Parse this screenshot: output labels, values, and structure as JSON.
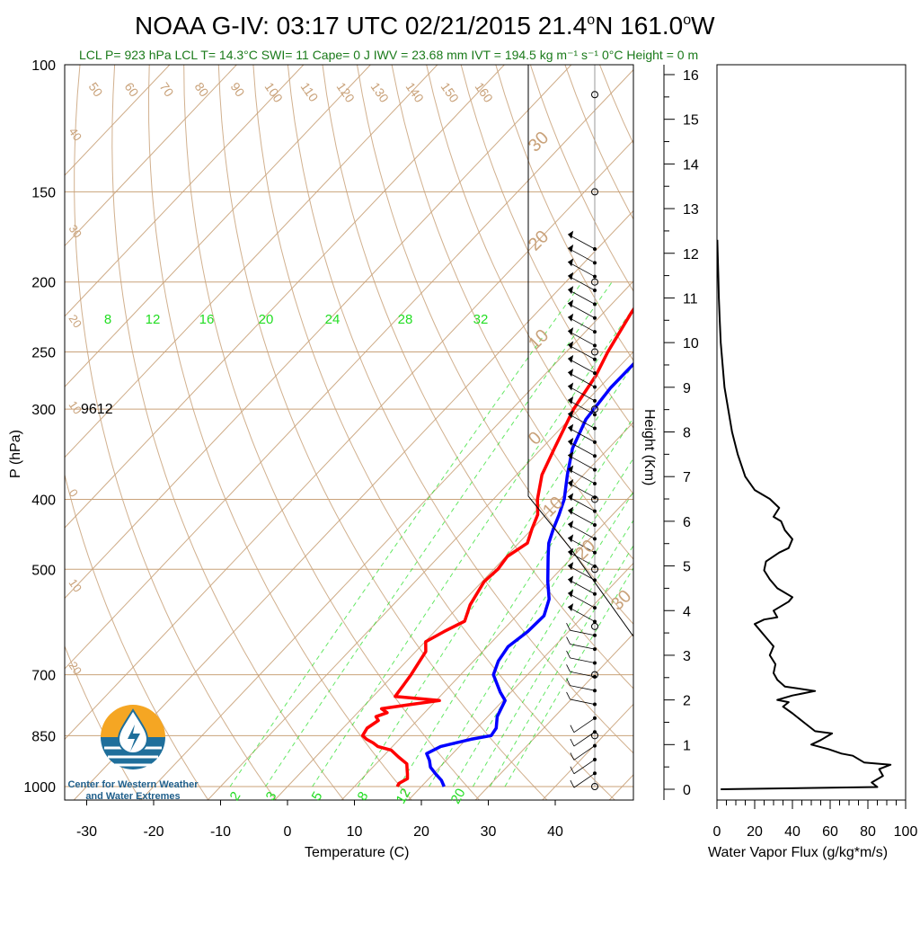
{
  "header": {
    "title_main": "NOAA G-IV: 03:17 UTC 02/21/2015  21.4",
    "title_lat_unit": "o",
    "title_mid": "N 161.0",
    "title_lon_unit": "o",
    "title_end": "W",
    "subtitle": "LCL P= 923 hPa  LCL T= 14.3°C  SWI= 11  Cape= 0 J  IWV = 23.68 mm  IVT = 194.5 kg m⁻¹ s⁻¹  0°C Height = 0 m"
  },
  "annotation": {
    "text": "9612"
  },
  "logo": {
    "line1": "Center for Western Weather",
    "line2": "and Water Extremes"
  },
  "colors": {
    "temperature": "#ff0000",
    "dewpoint": "#0000ff",
    "isotherm": "#c9a27a",
    "mixing_ratio": "#22dd22",
    "flux": "#000000"
  },
  "chart_data": [
    {
      "type": "line",
      "title": "",
      "xlabel": "Temperature (C)",
      "ylabel": "P (hPa)",
      "x_ticks": [
        "-30",
        "-20",
        "-10",
        "0",
        "10",
        "20",
        "30",
        "40"
      ],
      "y_ticks": [
        "100",
        "150",
        "200",
        "250",
        "300",
        "400",
        "500",
        "700",
        "850",
        "1000"
      ],
      "top_mixing_ratio_labels": [
        "8",
        "12",
        "16",
        "20",
        "24",
        "28",
        "32"
      ],
      "bottom_mixing_ratio_labels": [
        "2",
        "3",
        "5",
        "8",
        "12",
        "20"
      ],
      "isotherm_labels_top": [
        "50",
        "60",
        "70",
        "80",
        "90",
        "100",
        "110",
        "120",
        "130",
        "140",
        "150",
        "160"
      ],
      "isotherm_labels_left": [
        "40",
        "30",
        "20",
        "10",
        "0",
        "10",
        "20"
      ],
      "isotherm_labels_right": [
        "30",
        "20",
        "10",
        "0",
        "10",
        "20",
        "30"
      ],
      "series": [
        {
          "name": "",
          "points_p_t": [
            [
              1000,
              16.4
            ],
            [
              990,
              16.2
            ],
            [
              975,
              16.8
            ],
            [
              960,
              16.1
            ],
            [
              950,
              15.6
            ],
            [
              930,
              14.6
            ],
            [
              910,
              12.4
            ],
            [
              890,
              10.3
            ],
            [
              880,
              7.8
            ],
            [
              870,
              6.6
            ],
            [
              860,
              5.1
            ],
            [
              850,
              4.0
            ],
            [
              840,
              3.8
            ],
            [
              830,
              3.6
            ],
            [
              810,
              4.2
            ],
            [
              800,
              3.3
            ],
            [
              790,
              4.4
            ],
            [
              780,
              3.0
            ],
            [
              770,
              6.6
            ],
            [
              760,
              10.5
            ],
            [
              750,
              3.3
            ],
            [
              720,
              2.9
            ],
            [
              700,
              2.6
            ],
            [
              650,
              1.5
            ],
            [
              630,
              0.1
            ],
            [
              610,
              1.4
            ],
            [
              590,
              3.0
            ],
            [
              560,
              1.5
            ],
            [
              520,
              0.3
            ],
            [
              500,
              0.6
            ],
            [
              480,
              0.2
            ],
            [
              460,
              1.3
            ],
            [
              440,
              0.0
            ],
            [
              420,
              -1.2
            ],
            [
              400,
              -3.4
            ],
            [
              370,
              -6.2
            ],
            [
              340,
              -8.1
            ],
            [
              300,
              -10.8
            ],
            [
              270,
              -12.2
            ],
            [
              250,
              -13.8
            ],
            [
              220,
              -15.9
            ],
            [
              200,
              -17.0
            ],
            [
              185,
              -18.3
            ]
          ]
        },
        {
          "name": "",
          "points_p_t": [
            [
              1000,
              23.4
            ],
            [
              980,
              22.1
            ],
            [
              960,
              20.3
            ],
            [
              940,
              18.6
            ],
            [
              920,
              17.5
            ],
            [
              900,
              16.1
            ],
            [
              880,
              17.2
            ],
            [
              860,
              20.7
            ],
            [
              850,
              23.2
            ],
            [
              830,
              22.9
            ],
            [
              800,
              21.4
            ],
            [
              760,
              20.3
            ],
            [
              740,
              18.4
            ],
            [
              700,
              14.9
            ],
            [
              670,
              13.7
            ],
            [
              640,
              13.1
            ],
            [
              610,
              13.9
            ],
            [
              580,
              14.1
            ],
            [
              550,
              12.5
            ],
            [
              520,
              9.8
            ],
            [
              480,
              6.3
            ],
            [
              460,
              4.5
            ],
            [
              440,
              3.2
            ],
            [
              420,
              2.0
            ],
            [
              400,
              0.6
            ],
            [
              370,
              -2.4
            ],
            [
              340,
              -5.4
            ],
            [
              310,
              -7.5
            ],
            [
              280,
              -8.3
            ],
            [
              250,
              -8.2
            ],
            [
              230,
              -8.9
            ],
            [
              210,
              -10.1
            ],
            [
              195,
              -11.0
            ],
            [
              185,
              -12.1
            ]
          ]
        }
      ]
    },
    {
      "type": "line",
      "title": "",
      "xlabel": "Water Vapor Flux (g/kg*m/s)",
      "ylabel": "Height (Km)",
      "xlim": [
        0,
        100
      ],
      "ylim": [
        0,
        16
      ],
      "x_ticks": [
        "0",
        "20",
        "40",
        "60",
        "80",
        "100"
      ],
      "y_ticks": [
        "0",
        "1",
        "2",
        "3",
        "4",
        "5",
        "6",
        "7",
        "8",
        "9",
        "10",
        "11",
        "12",
        "13",
        "14",
        "15",
        "16"
      ],
      "series": [
        {
          "name": "",
          "points_x_h": [
            [
              2,
              0.0
            ],
            [
              85,
              0.05
            ],
            [
              82,
              0.15
            ],
            [
              88,
              0.3
            ],
            [
              86,
              0.45
            ],
            [
              92,
              0.55
            ],
            [
              78,
              0.6
            ],
            [
              72,
              0.75
            ],
            [
              66,
              0.8
            ],
            [
              59,
              0.9
            ],
            [
              50,
              1.0
            ],
            [
              55,
              1.1
            ],
            [
              61,
              1.25
            ],
            [
              52,
              1.3
            ],
            [
              46,
              1.5
            ],
            [
              40,
              1.7
            ],
            [
              35,
              1.85
            ],
            [
              38,
              1.95
            ],
            [
              32,
              2.0
            ],
            [
              40,
              2.1
            ],
            [
              52,
              2.2
            ],
            [
              36,
              2.3
            ],
            [
              32,
              2.45
            ],
            [
              30,
              2.6
            ],
            [
              31,
              2.8
            ],
            [
              28,
              3.0
            ],
            [
              30,
              3.2
            ],
            [
              26,
              3.4
            ],
            [
              20,
              3.7
            ],
            [
              25,
              3.8
            ],
            [
              32,
              3.85
            ],
            [
              30,
              4.0
            ],
            [
              38,
              4.2
            ],
            [
              40,
              4.3
            ],
            [
              32,
              4.5
            ],
            [
              28,
              4.7
            ],
            [
              25,
              4.9
            ],
            [
              26,
              5.1
            ],
            [
              33,
              5.3
            ],
            [
              38,
              5.4
            ],
            [
              40,
              5.6
            ],
            [
              36,
              5.8
            ],
            [
              34,
              6.0
            ],
            [
              30,
              6.1
            ],
            [
              33,
              6.3
            ],
            [
              28,
              6.5
            ],
            [
              20,
              6.7
            ],
            [
              15,
              7.0
            ],
            [
              11,
              7.5
            ],
            [
              8,
              8.0
            ],
            [
              6,
              8.5
            ],
            [
              4,
              9.0
            ],
            [
              3,
              9.5
            ],
            [
              2,
              10.0
            ],
            [
              1.5,
              10.5
            ],
            [
              1,
              11.0
            ],
            [
              0.7,
              11.5
            ],
            [
              0.4,
              12.0
            ],
            [
              0.2,
              12.3
            ]
          ]
        }
      ]
    }
  ],
  "wind_column": {
    "dots_hpa": [
      110,
      150,
      200,
      250,
      300,
      400,
      500,
      600,
      700,
      850,
      1000
    ]
  }
}
